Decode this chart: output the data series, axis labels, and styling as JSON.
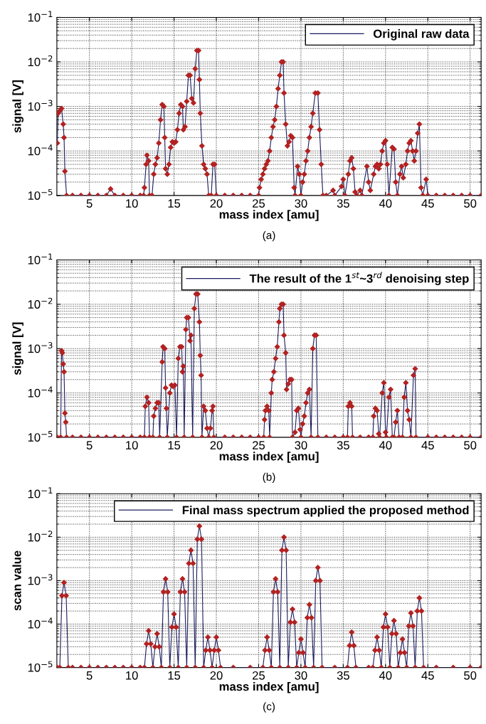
{
  "chart_data": [
    {
      "type": "line",
      "xlabel": "mass index [amu]",
      "ylabel": "signal [V]",
      "annotations": [
        "(a)"
      ],
      "log": "y",
      "grid": true,
      "legend": "top right",
      "marker": "diamond",
      "line_style": "solid",
      "xlim": [
        1.15,
        51.3
      ],
      "xticks": [
        5,
        10,
        15,
        20,
        25,
        30,
        35,
        40,
        45,
        50
      ],
      "ylim": [
        1e-05,
        0.1
      ],
      "yticks": [
        {
          "value": 1e-05,
          "label": "10$^{−5}$"
        },
        {
          "value": 0.0001,
          "label": "10$^{−4}$"
        },
        {
          "value": 0.001,
          "label": "10$^{−3}$"
        },
        {
          "value": 0.01,
          "label": "10$^{−2}$"
        },
        {
          "value": 0.1,
          "label": "10$^{−1}$"
        }
      ],
      "series": [
        {
          "name": "Original raw data",
          "color": "#1c1c5e",
          "x": [
            1.2,
            1.3,
            1.5,
            1.7,
            1.9,
            2.0,
            2.1,
            2.3,
            3,
            4,
            5,
            6,
            7,
            7.5,
            8,
            9,
            10,
            11,
            11.4,
            11.5,
            11.7,
            11.8,
            12.0,
            12.1,
            12.4,
            12.6,
            12.8,
            13.0,
            13.2,
            13.4,
            13.6,
            13.8,
            13.9,
            14.0,
            14.2,
            14.4,
            14.6,
            14.8,
            15.0,
            15.2,
            15.4,
            15.6,
            15.8,
            16.0,
            16.1,
            16.3,
            16.5,
            16.7,
            16.9,
            17.1,
            17.3,
            17.5,
            17.7,
            17.9,
            18.0,
            18.1,
            18.3,
            18.5,
            18.7,
            18.9,
            19.1,
            19.4,
            19.6,
            19.8,
            20.0,
            21,
            22,
            23,
            24,
            25.0,
            25.1,
            25.3,
            25.5,
            25.7,
            25.9,
            26.1,
            26.3,
            26.5,
            26.7,
            26.9,
            27.1,
            27.3,
            27.5,
            27.7,
            27.9,
            28.0,
            28.2,
            28.4,
            28.6,
            28.8,
            29.0,
            29.2,
            29.3,
            29.6,
            29.8,
            30.0,
            30.2,
            30.4,
            30.6,
            30.8,
            31.0,
            31.2,
            31.4,
            31.7,
            32.0,
            32.2,
            32.4,
            32.6,
            33,
            33.8,
            34.0,
            34.8,
            35.0,
            35.2,
            35.6,
            35.8,
            36.0,
            36.2,
            36.4,
            36.6,
            37.0,
            37.2,
            37.8,
            38.0,
            38.2,
            38.6,
            38.8,
            39.0,
            39.2,
            39.4,
            39.6,
            39.8,
            40.0,
            40.2,
            40.4,
            40.8,
            41.0,
            41.2,
            41.4,
            41.7,
            41.9,
            42.1,
            42.4,
            42.6,
            42.8,
            43.0,
            43.2,
            43.4,
            43.6,
            43.8,
            44.0,
            44.2,
            44.4,
            44.8,
            45.0,
            46,
            47,
            48,
            49,
            50,
            51.3
          ],
          "values": [
            0.00015,
            0.0007,
            0.0008,
            0.0009,
            0.0004,
            0.0002,
            3.5e-05,
            1e-05,
            1e-05,
            1e-05,
            1e-05,
            1e-05,
            1e-05,
            1.4e-05,
            1e-05,
            1e-05,
            1e-05,
            1e-05,
            1e-05,
            1.5e-05,
            5e-05,
            8e-05,
            6e-05,
            1e-05,
            1e-05,
            3e-05,
            5e-05,
            7e-05,
            0.00015,
            0.0005,
            0.0011,
            0.001,
            0.0002,
            4e-05,
            3e-05,
            5e-05,
            0.00012,
            0.00016,
            0.00015,
            0.00016,
            0.0003,
            0.0007,
            0.0011,
            0.001,
            0.0003,
            0.00035,
            0.0013,
            0.005,
            0.005,
            0.0015,
            0.0012,
            0.007,
            0.018,
            0.018,
            0.004,
            0.0007,
            0.00013,
            5e-05,
            4e-05,
            3e-05,
            1e-05,
            1e-05,
            5e-05,
            5e-05,
            1e-05,
            1e-05,
            1e-05,
            1e-05,
            1e-05,
            1e-05,
            1.5e-05,
            2.3e-05,
            3e-05,
            4e-05,
            5e-05,
            6e-05,
            0.0001,
            0.0002,
            0.00035,
            0.0005,
            0.001,
            0.0025,
            0.005,
            0.01,
            0.01,
            0.002,
            0.0004,
            0.00013,
            0.00016,
            0.00022,
            0.0002,
            1.5e-05,
            1e-05,
            4.5e-05,
            3e-05,
            1e-05,
            2e-05,
            3e-05,
            6e-05,
            0.0001,
            0.0002,
            0.00035,
            0.0007,
            0.002,
            0.002,
            0.0003,
            5e-05,
            1e-05,
            1e-05,
            1.3e-05,
            1e-05,
            1.6e-05,
            2.3e-05,
            1e-05,
            3e-05,
            6e-05,
            7e-05,
            4e-05,
            1.2e-05,
            1e-05,
            1.3e-05,
            1e-05,
            4.5e-05,
            2e-05,
            1.3e-05,
            3e-05,
            4.5e-05,
            5e-05,
            4e-05,
            5e-05,
            0.0001,
            0.00015,
            0.00017,
            5e-05,
            1e-05,
            0.00012,
            0.00011,
            2e-05,
            1e-05,
            3e-05,
            4.5e-05,
            2.5e-05,
            5e-05,
            0.0001,
            0.00015,
            0.00017,
            0.0001,
            6e-05,
            0.0001,
            0.00025,
            0.0004,
            1.5e-05,
            1e-05,
            2.3e-05,
            1e-05,
            1e-05,
            1e-05,
            1e-05,
            1e-05,
            1e-05,
            1e-05
          ]
        }
      ]
    },
    {
      "type": "line",
      "xlabel": "mass index [amu]",
      "ylabel": "signal [V]",
      "annotations": [
        "(b)"
      ],
      "log": "y",
      "grid": true,
      "legend": "top right",
      "marker": "diamond",
      "line_style": "solid",
      "xlim": [
        1.15,
        51.3
      ],
      "xticks": [
        5,
        10,
        15,
        20,
        25,
        30,
        35,
        40,
        45,
        50
      ],
      "ylim": [
        1e-05,
        0.1
      ],
      "yticks": [
        {
          "value": 1e-05,
          "label": "10$^{−5}$"
        },
        {
          "value": 0.0001,
          "label": "10$^{−4}$"
        },
        {
          "value": 0.001,
          "label": "10$^{−3}$"
        },
        {
          "value": 0.01,
          "label": "10$^{−2}$"
        },
        {
          "value": 0.1,
          "label": "10$^{−1}$"
        }
      ],
      "series": [
        {
          "name": "The result of the 1$^{st}$~3$^{rd}$ denoising step",
          "color": "#1c1c5e",
          "x": [
            1.2,
            1.6,
            1.7,
            1.8,
            1.9,
            2.0,
            2.1,
            2.2,
            2.3,
            3,
            4,
            5,
            6,
            7,
            8,
            9,
            10,
            11,
            11.5,
            11.6,
            11.8,
            12.0,
            12.1,
            12.5,
            12.6,
            12.8,
            13.0,
            13.2,
            13.3,
            13.6,
            13.7,
            13.9,
            14.0,
            14.1,
            14.2,
            14.5,
            14.7,
            14.9,
            15.1,
            15.3,
            15.5,
            15.7,
            15.9,
            16.0,
            16.1,
            16.2,
            16.4,
            16.5,
            16.7,
            16.9,
            17.0,
            17.2,
            17.4,
            17.6,
            17.8,
            18.0,
            18.1,
            18.2,
            18.3,
            18.5,
            18.7,
            18.9,
            19.1,
            19.3,
            19.5,
            19.6,
            19.7,
            21,
            22,
            23,
            24,
            25,
            25.6,
            25.7,
            25.8,
            26.0,
            26.2,
            26.3,
            26.5,
            26.6,
            26.8,
            27.0,
            27.2,
            27.4,
            27.5,
            27.7,
            27.9,
            28.0,
            28.2,
            28.3,
            28.5,
            28.7,
            28.9,
            29.0,
            29.3,
            29.5,
            29.7,
            29.9,
            30.0,
            30.2,
            30.4,
            30.6,
            30.8,
            31.0,
            31.2,
            31.4,
            31.6,
            31.8,
            32.0,
            33,
            34,
            35,
            35.5,
            35.6,
            35.8,
            36.0,
            36.1,
            37,
            38,
            38.5,
            38.6,
            38.8,
            39.0,
            39.2,
            39.3,
            39.6,
            39.8,
            40.0,
            40.1,
            40.4,
            40.6,
            40.8,
            41.0,
            41.2,
            41.4,
            41.6,
            42.0,
            42.2,
            42.4,
            42.6,
            42.8,
            43.0,
            43.3,
            43.5,
            43.6,
            45,
            46,
            47,
            48,
            49,
            50,
            51.3
          ],
          "values": [
            1e-05,
            1e-05,
            0.0009,
            0.0008,
            0.00045,
            0.0003,
            3.5e-05,
            2.2e-05,
            1e-05,
            1e-05,
            1e-05,
            1e-05,
            1e-05,
            1e-05,
            1e-05,
            1e-05,
            1e-05,
            1e-05,
            1e-05,
            5e-05,
            8e-05,
            6e-05,
            1e-05,
            1e-05,
            3e-05,
            4.5e-05,
            6e-05,
            6e-05,
            1e-05,
            0.0005,
            0.0011,
            0.001,
            0.00013,
            4.5e-05,
            1e-05,
            0.0001,
            0.00015,
            0.00014,
            0.00015,
            1e-05,
            0.0006,
            0.0011,
            0.0011,
            0.0003,
            0.0004,
            1e-05,
            0.0027,
            0.005,
            0.005,
            0.0015,
            0.002,
            1e-05,
            0.008,
            0.017,
            0.017,
            0.004,
            0.0007,
            0.00025,
            1e-05,
            5e-05,
            4e-05,
            1.6e-05,
            1e-05,
            1.6e-05,
            4e-05,
            5e-05,
            1e-05,
            1e-05,
            1e-05,
            1e-05,
            1e-05,
            1e-05,
            1e-05,
            2.5e-05,
            4e-05,
            5e-05,
            4e-05,
            1e-05,
            0.0001,
            0.0002,
            0.0003,
            0.0006,
            0.0011,
            0.004,
            0.008,
            0.01,
            0.01,
            0.002,
            0.0008,
            0.00012,
            0.00016,
            0.0002,
            0.0002,
            1e-05,
            1.3e-05,
            4e-05,
            4.5e-05,
            1.5e-05,
            1e-05,
            2e-05,
            3e-05,
            6e-05,
            0.0001,
            0.00012,
            1e-05,
            0.001,
            0.002,
            0.002,
            1e-05,
            1e-05,
            1e-05,
            1e-05,
            1e-05,
            5e-05,
            6e-05,
            5e-05,
            1e-05,
            1e-05,
            1e-05,
            1e-05,
            3e-05,
            4.5e-05,
            4e-05,
            1.2e-05,
            1e-05,
            0.0001,
            0.00017,
            1.3e-05,
            1e-05,
            8e-05,
            0.00012,
            1e-05,
            1e-05,
            2.2e-05,
            4e-05,
            1e-05,
            1e-05,
            8e-05,
            0.00017,
            4e-05,
            2.5e-05,
            1e-05,
            0.00025,
            0.00035,
            1e-05,
            1e-05,
            1e-05,
            1e-05,
            1e-05,
            1e-05,
            1e-05,
            1e-05
          ]
        }
      ]
    },
    {
      "type": "line",
      "xlabel": "mass index [amu]",
      "ylabel": "scan value",
      "annotations": [
        "(c)"
      ],
      "log": "y",
      "grid": true,
      "legend": "top right",
      "marker": "diamond",
      "line_style": "solid",
      "xlim": [
        1.15,
        51.3
      ],
      "xticks": [
        5,
        10,
        15,
        20,
        25,
        30,
        35,
        40,
        45,
        50
      ],
      "ylim": [
        1e-05,
        0.1
      ],
      "yticks": [
        {
          "value": 1e-05,
          "label": "10$^{−5}$"
        },
        {
          "value": 0.0001,
          "label": "10$^{−4}$"
        },
        {
          "value": 0.001,
          "label": "10$^{−3}$"
        },
        {
          "value": 0.01,
          "label": "10$^{−2}$"
        },
        {
          "value": 0.1,
          "label": "10$^{−1}$"
        }
      ],
      "series": [
        {
          "name": "Final mass spectrum applied the proposed method",
          "color": "#1c1c5e",
          "x": [
            1.2,
            1.5,
            1.75,
            2,
            2.25,
            2.5,
            3,
            4,
            5,
            6,
            7,
            8,
            9,
            10,
            11,
            11.5,
            11.75,
            12,
            12.25,
            12.5,
            12.75,
            13,
            13.25,
            13.5,
            13.75,
            14,
            14.25,
            14.5,
            14.75,
            15,
            15.25,
            15.5,
            15.75,
            16,
            16.25,
            16.5,
            16.75,
            17,
            17.25,
            17.5,
            17.75,
            18,
            18.25,
            18.5,
            18.75,
            19,
            19.25,
            19.5,
            19.75,
            20,
            20.25,
            20.5,
            22,
            24,
            25.5,
            25.75,
            26,
            26.25,
            26.5,
            26.75,
            27,
            27.25,
            27.5,
            27.75,
            28,
            28.25,
            28.5,
            28.75,
            29,
            29.25,
            29.5,
            29.75,
            30,
            30.25,
            30.5,
            30.75,
            31,
            31.25,
            31.5,
            31.75,
            32,
            32.25,
            32.5,
            34,
            35.5,
            35.75,
            36,
            36.25,
            36.5,
            38,
            38.5,
            38.75,
            39,
            39.25,
            39.5,
            39.75,
            40,
            40.25,
            40.5,
            40.75,
            41,
            41.25,
            41.5,
            41.75,
            42,
            42.25,
            42.5,
            42.75,
            43,
            43.25,
            43.5,
            43.75,
            44,
            44.25,
            44.5,
            46,
            48,
            50,
            51.3
          ],
          "values": [
            1e-05,
            1e-05,
            0.00045,
            0.0009,
            0.00045,
            1e-05,
            1e-05,
            1e-05,
            1e-05,
            1e-05,
            1e-05,
            1e-05,
            1e-05,
            1e-05,
            1e-05,
            1e-05,
            3.5e-05,
            7e-05,
            3.5e-05,
            1e-05,
            3e-05,
            6e-05,
            3e-05,
            1e-05,
            0.00055,
            0.0011,
            0.00055,
            1e-05,
            8.5e-05,
            0.00017,
            8.5e-05,
            1e-05,
            0.00055,
            0.0011,
            0.00055,
            1e-05,
            0.0025,
            0.005,
            0.0025,
            1e-05,
            0.009,
            0.018,
            0.009,
            1e-05,
            2.5e-05,
            5e-05,
            2.5e-05,
            1e-05,
            2.5e-05,
            5e-05,
            2.5e-05,
            1e-05,
            1e-05,
            1e-05,
            1e-05,
            2.5e-05,
            5e-05,
            2.5e-05,
            1e-05,
            0.00055,
            0.0011,
            0.00055,
            1e-05,
            0.005,
            0.01,
            0.005,
            1e-05,
            0.00011,
            0.00022,
            0.00011,
            1e-05,
            2.2e-05,
            4.5e-05,
            2.2e-05,
            1e-05,
            0.00014,
            0.00028,
            0.00014,
            1e-05,
            0.001,
            0.002,
            0.001,
            1e-05,
            1e-05,
            1e-05,
            3.2e-05,
            6.5e-05,
            3.2e-05,
            1e-05,
            1e-05,
            1e-05,
            2.5e-05,
            5e-05,
            2.5e-05,
            1e-05,
            8.5e-05,
            0.00017,
            8.5e-05,
            1e-05,
            6e-05,
            0.00012,
            6e-05,
            1e-05,
            2.2e-05,
            4.5e-05,
            2.2e-05,
            1e-05,
            9e-05,
            0.00018,
            9e-05,
            1e-05,
            0.0002,
            0.0004,
            0.0002,
            1e-05,
            1e-05,
            1e-05,
            1e-05,
            1e-05
          ]
        }
      ]
    }
  ]
}
